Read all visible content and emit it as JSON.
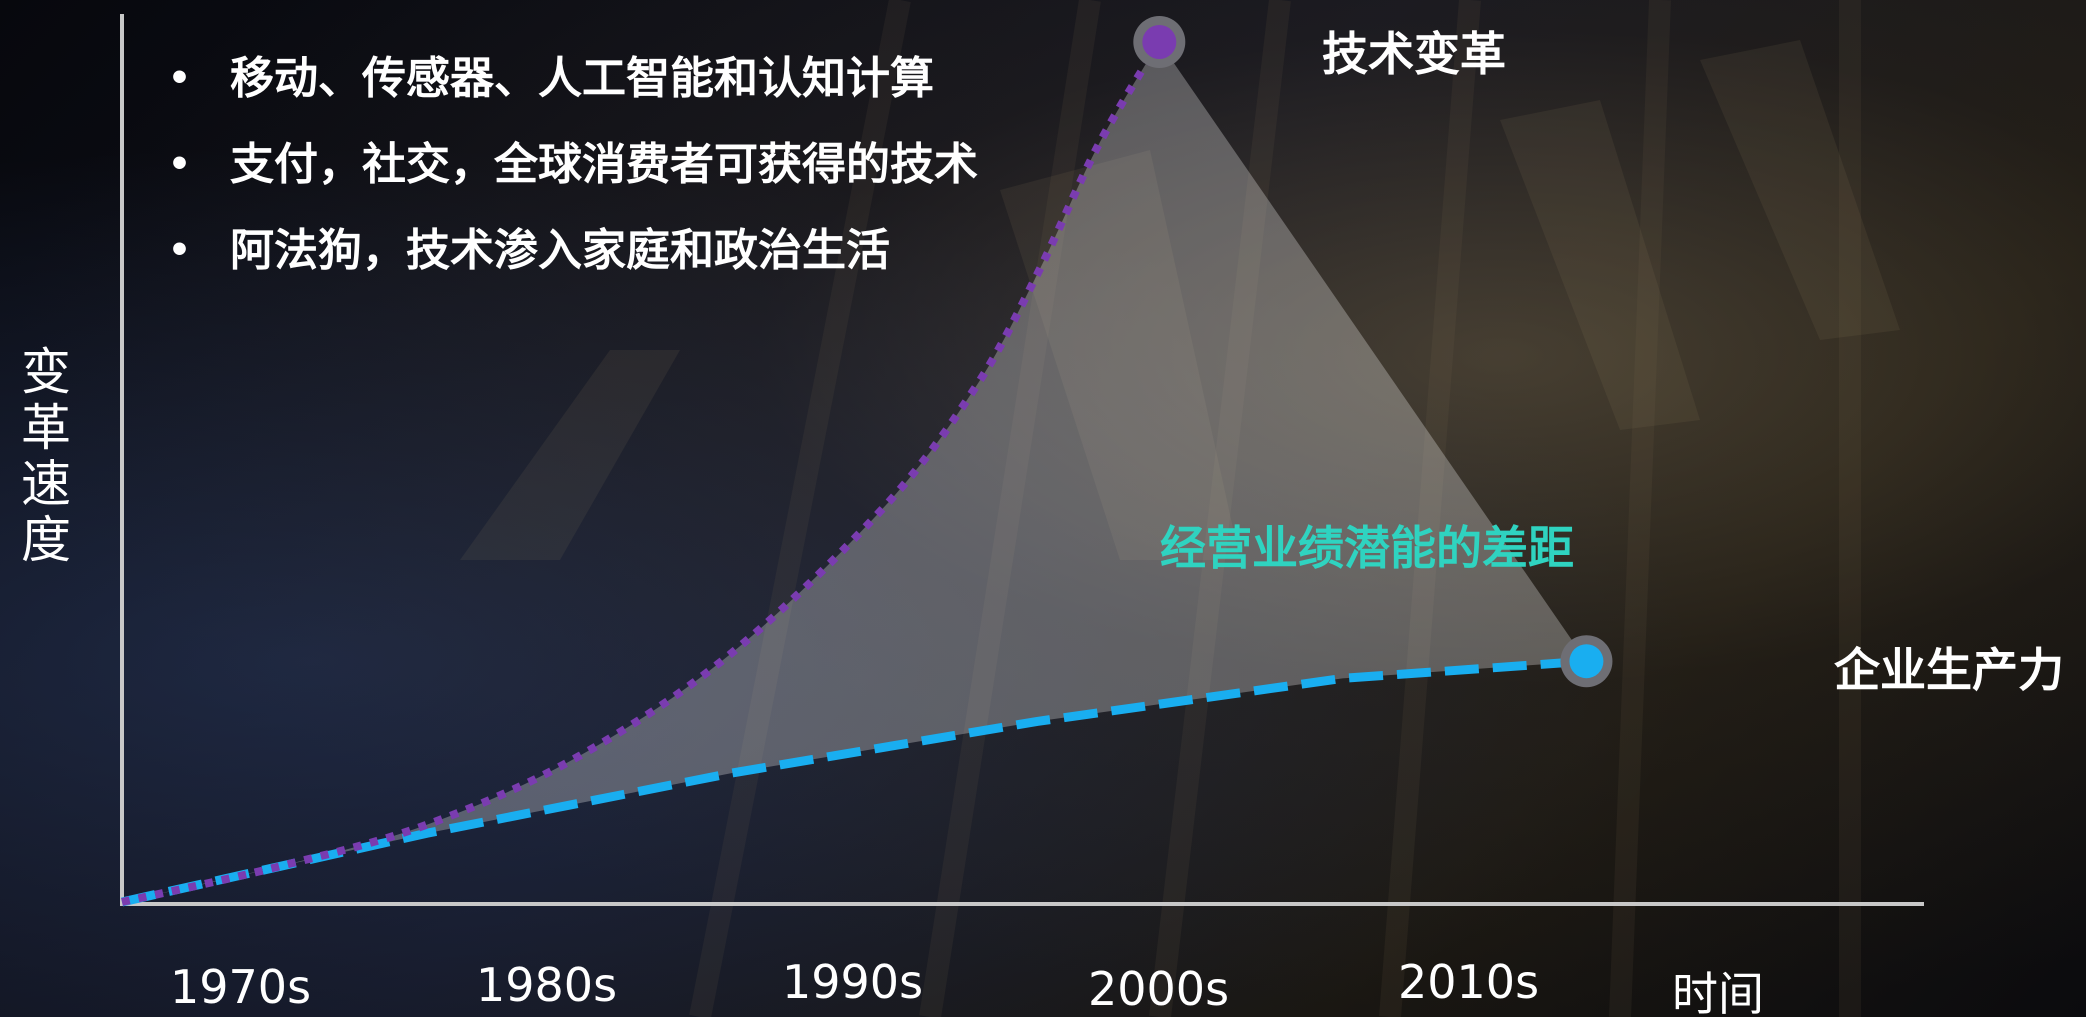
{
  "bullets": [
    "移动、传感器、人工智能和认知计算",
    "支付，社交，全球消费者可获得的技术",
    "阿法狗，技术渗入家庭和政治生活"
  ],
  "bullet_symbol": "•",
  "colors": {
    "tech_curve": "#7a3cb0",
    "productivity_line": "#19aef0",
    "gap_fill": "rgba(255,255,255,0.28)",
    "gap_text": "#2fd3c0",
    "axis": "#c8c8c8"
  },
  "chart_data": {
    "type": "line",
    "title": "",
    "xlabel": "时间",
    "ylabel": "变革速度",
    "categories": [
      "1970s",
      "1980s",
      "1990s",
      "2000s",
      "2010s"
    ],
    "xlim": [
      1970,
      2025
    ],
    "ylim": [
      0,
      100
    ],
    "grid": false,
    "series": [
      {
        "name": "技术变革",
        "style": "dotted",
        "color": "#7a3cb0",
        "x": [
          1970,
          1975,
          1980,
          1985,
          1990,
          1995,
          1998,
          2000,
          2002,
          2004
        ],
        "y": [
          0,
          4,
          9,
          17,
          29,
          46,
          60,
          73,
          88,
          100
        ]
      },
      {
        "name": "企业生产力",
        "style": "dashed",
        "color": "#19aef0",
        "x": [
          1970,
          1980,
          1990,
          2000,
          2010,
          2018
        ],
        "y": [
          0,
          8,
          15,
          21,
          26,
          28
        ]
      }
    ],
    "annotations": [
      {
        "text": "经营业绩潜能的差距",
        "type": "shaded-gap"
      }
    ]
  }
}
